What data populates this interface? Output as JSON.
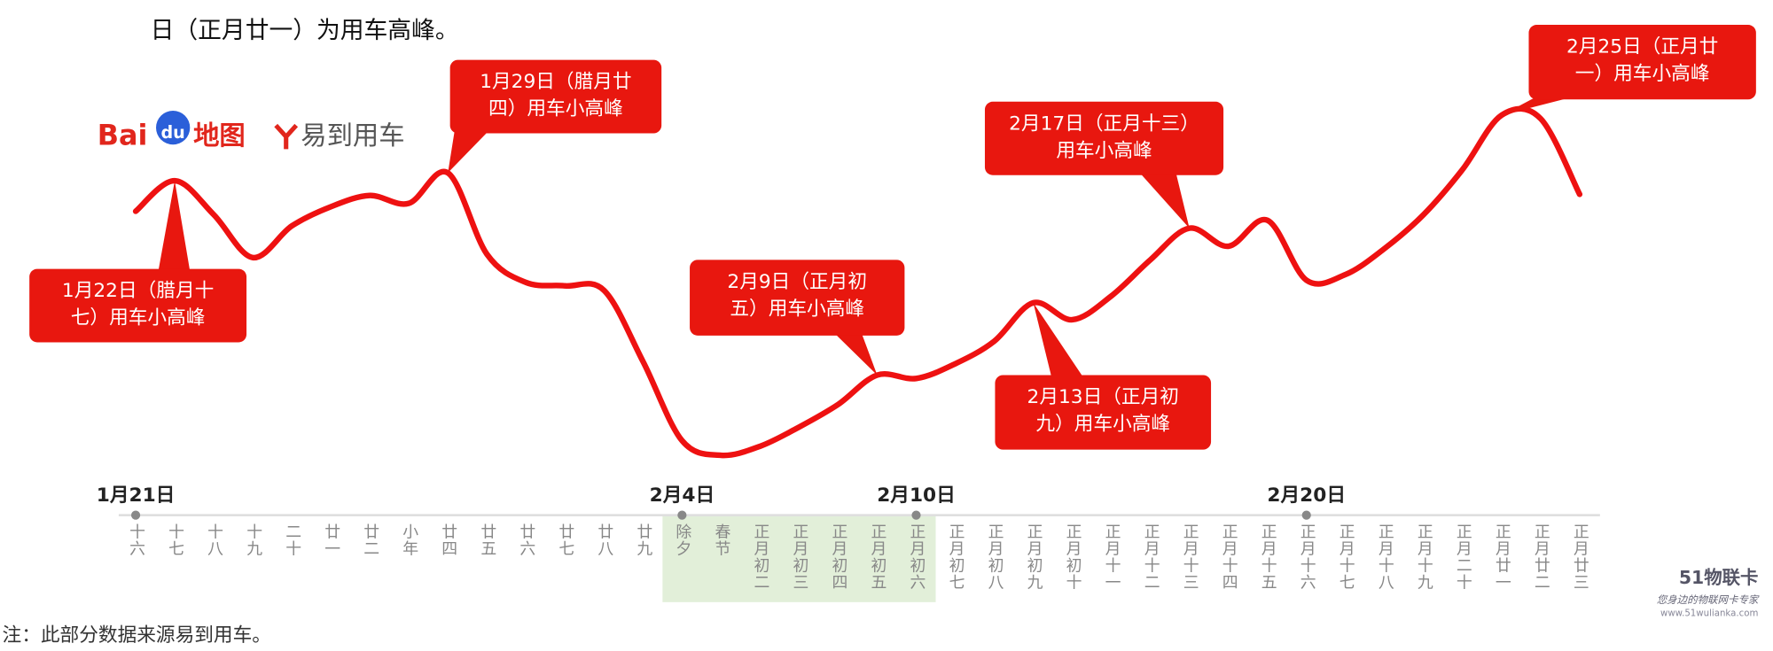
{
  "header": {
    "title": "日（正月廿一）为用车高峰。"
  },
  "logos": {
    "baidu": [
      "Bai",
      "du",
      "地图"
    ],
    "yidao": "易到用车"
  },
  "footer": "注：此部分数据来源易到用车。",
  "watermark": [
    "51物联卡",
    "您身边的物联网卡专家",
    "www.51wulianka.com"
  ],
  "chart_data": {
    "type": "line",
    "categories": [
      "十六",
      "十七",
      "十八",
      "十九",
      "二十",
      "廿一",
      "廿二",
      "小年",
      "廿四",
      "廿五",
      "廿六",
      "廿七",
      "廿八",
      "廿九",
      "除夕",
      "春节",
      "正月初二",
      "正月初三",
      "正月初四",
      "正月初五",
      "正月初六",
      "正月初七",
      "正月初八",
      "正月初九",
      "正月初十",
      "正月十一",
      "正月十二",
      "正月十三",
      "正月十四",
      "正月十五",
      "正月十六",
      "正月十七",
      "正月十八",
      "正月十九",
      "正月二十",
      "正月廿一",
      "正月廿二",
      "正月廿三"
    ],
    "date_labels": [
      "1月21日",
      null,
      null,
      null,
      null,
      null,
      null,
      null,
      null,
      null,
      null,
      null,
      null,
      null,
      "2月4日",
      null,
      null,
      null,
      null,
      null,
      "2月10日",
      null,
      null,
      null,
      null,
      null,
      null,
      null,
      null,
      null,
      "2月20日",
      null,
      null,
      null,
      null,
      null,
      null,
      null
    ],
    "series": [
      {
        "name": "用车",
        "color": "#ee1111",
        "values": [
          233,
          260,
          230,
          192,
          220,
          237,
          247,
          240,
          267,
          195,
          170,
          167,
          163,
          100,
          30,
          17,
          25,
          42,
          62,
          88,
          85,
          98,
          118,
          152,
          137,
          158,
          190,
          218,
          202,
          225,
          172,
          177,
          200,
          230,
          270,
          318,
          315,
          248
        ]
      }
    ],
    "ylim": [
      0,
      330
    ],
    "highlight": {
      "from": "除夕",
      "to": "正月初六",
      "color": "#e2efd9"
    },
    "annotation_color": "#e8170f",
    "annotations": [
      {
        "at": 1,
        "lines": [
          "1月22日（腊月十",
          "七）用车小高峰"
        ]
      },
      {
        "at": 8,
        "lines": [
          "1月29日（腊月廿",
          "四）用车小高峰"
        ]
      },
      {
        "at": 19,
        "lines": [
          "2月9日（正月初",
          "五）用车小高峰"
        ]
      },
      {
        "at": 23,
        "lines": [
          "2月13日（正月初",
          "九）用车小高峰"
        ]
      },
      {
        "at": 27,
        "lines": [
          "2月17日（正月十三）",
          "用车小高峰"
        ]
      },
      {
        "at": 35,
        "lines": [
          "2月25日（正月廿",
          "一）用车小高峰"
        ]
      }
    ]
  }
}
